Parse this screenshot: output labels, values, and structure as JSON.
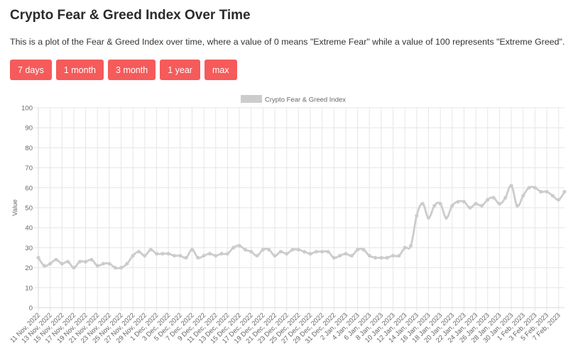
{
  "header": {
    "title": "Crypto Fear & Greed Index Over Time",
    "description": "This is a plot of the Fear & Greed Index over time, where a value of 0 means \"Extreme Fear\" while a value of 100 represents \"Extreme Greed\"."
  },
  "range_buttons": [
    {
      "label": "7 days"
    },
    {
      "label": "1 month"
    },
    {
      "label": "3 month"
    },
    {
      "label": "1 year"
    },
    {
      "label": "max"
    }
  ],
  "colors": {
    "button_bg": "#f55b5b",
    "series_line": "#cccccc",
    "grid": "#e6e6e6"
  },
  "chart_data": {
    "type": "line",
    "ylabel": "Value",
    "xlabel": "",
    "ylim": [
      0,
      100
    ],
    "yticks": [
      0,
      10,
      20,
      30,
      40,
      50,
      60,
      70,
      80,
      90,
      100
    ],
    "grid": true,
    "legend_position": "top-center",
    "x_tick_labels": [
      "11 Nov, 2022",
      "13 Nov, 2022",
      "15 Nov, 2022",
      "17 Nov, 2022",
      "19 Nov, 2022",
      "21 Nov, 2022",
      "23 Nov, 2022",
      "25 Nov, 2022",
      "27 Nov, 2022",
      "29 Nov, 2022",
      "1 Dec, 2022",
      "3 Dec, 2022",
      "5 Dec, 2022",
      "7 Dec, 2022",
      "9 Dec, 2022",
      "11 Dec, 2022",
      "13 Dec, 2022",
      "15 Dec, 2022",
      "17 Dec, 2022",
      "19 Dec, 2022",
      "21 Dec, 2022",
      "23 Dec, 2022",
      "25 Dec, 2022",
      "27 Dec, 2022",
      "29 Dec, 2022",
      "31 Dec, 2022",
      "2 Jan, 2023",
      "4 Jan, 2023",
      "6 Jan, 2023",
      "8 Jan, 2023",
      "10 Jan, 2023",
      "12 Jan, 2023",
      "14 Jan, 2023",
      "16 Jan, 2023",
      "18 Jan, 2023",
      "20 Jan, 2023",
      "22 Jan, 2023",
      "24 Jan, 2023",
      "26 Jan, 2023",
      "28 Jan, 2023",
      "30 Jan, 2023",
      "1 Feb, 2023",
      "3 Feb, 2023",
      "5 Feb, 2023",
      "7 Feb, 2023"
    ],
    "series": [
      {
        "name": "Crypto Fear & Greed Index",
        "values": [
          25,
          21,
          22,
          24,
          22,
          23,
          20,
          23,
          23,
          24,
          21,
          22,
          22,
          20,
          20,
          22,
          26,
          28,
          26,
          29,
          27,
          27,
          27,
          26,
          26,
          25,
          29,
          25,
          26,
          27,
          26,
          27,
          27,
          30,
          31,
          29,
          28,
          26,
          29,
          29,
          26,
          28,
          27,
          29,
          29,
          28,
          27,
          28,
          28,
          28,
          25,
          26,
          27,
          26,
          29,
          29,
          26,
          25,
          25,
          25,
          26,
          26,
          30,
          31,
          46,
          52,
          45,
          51,
          52,
          45,
          51,
          53,
          53,
          50,
          52,
          51,
          54,
          55,
          52,
          55,
          61,
          51,
          56,
          60,
          60,
          58,
          58,
          56,
          54,
          58
        ]
      }
    ]
  }
}
